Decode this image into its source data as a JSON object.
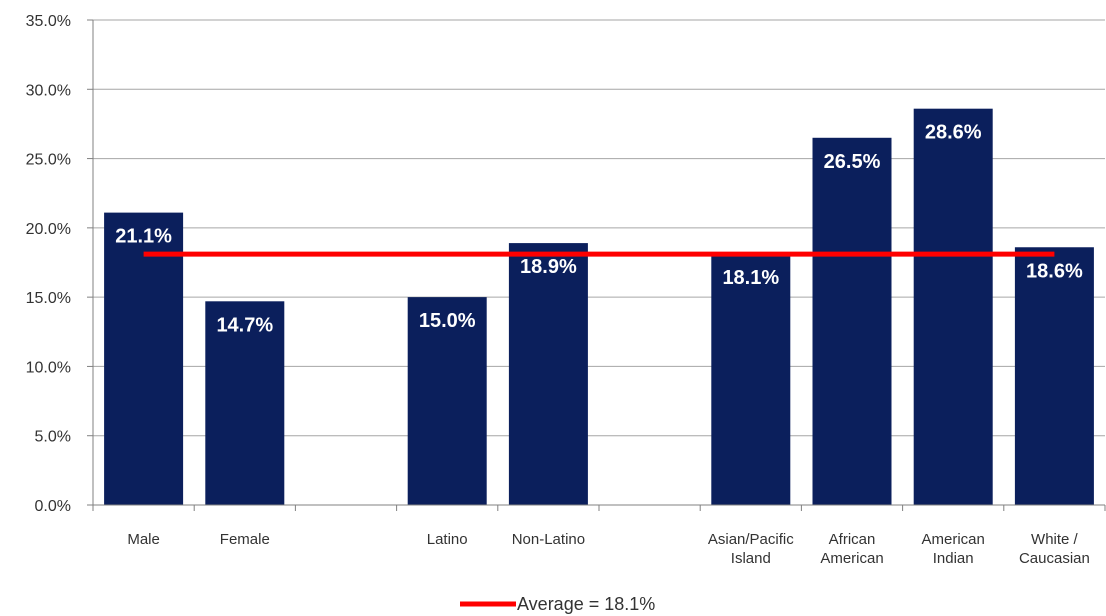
{
  "chart_data": {
    "type": "bar",
    "categories": [
      [
        "Male"
      ],
      [
        "Female"
      ],
      [],
      [
        "Latino"
      ],
      [
        "Non-Latino"
      ],
      [],
      [
        "Asian/Pacific",
        "Island"
      ],
      [
        "African",
        "American"
      ],
      [
        "American",
        "Indian"
      ],
      [
        "White /",
        "Caucasian"
      ]
    ],
    "values": [
      21.1,
      14.7,
      null,
      15.0,
      18.9,
      null,
      18.1,
      26.5,
      28.6,
      18.6
    ],
    "data_labels": [
      "21.1%",
      "14.7%",
      "",
      "15.0%",
      "18.9%",
      "",
      "18.1%",
      "26.5%",
      "28.6%",
      "18.6%"
    ],
    "y_ticks": [
      "0.0%",
      "5.0%",
      "10.0%",
      "15.0%",
      "20.0%",
      "25.0%",
      "30.0%",
      "35.0%"
    ],
    "ylim": [
      0,
      35
    ],
    "grid": true,
    "average": {
      "value": 18.1,
      "label": "Average = 18.1%"
    },
    "legend_position": "bottom",
    "colors": {
      "bar": "#0b1f5c",
      "average_line": "#ff0000",
      "grid": "#a6a6a6",
      "axis": "#808080"
    }
  }
}
